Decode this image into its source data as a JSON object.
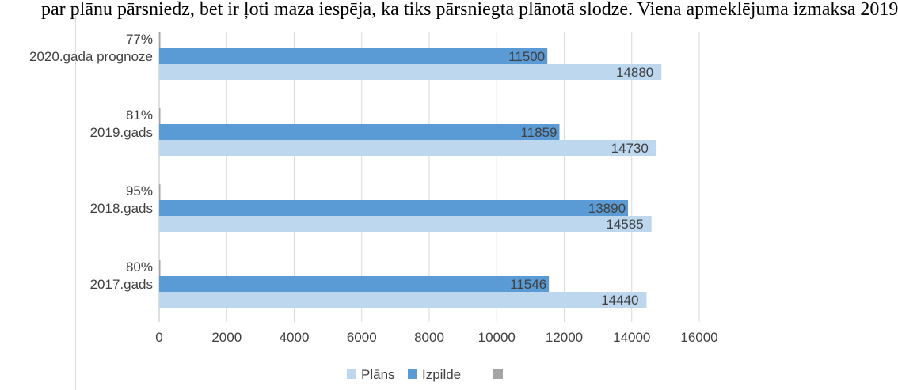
{
  "page": {
    "caption_fragment": "par plānu pārsniedz, bet ir ļoti maza iespēja, ka tiks pārsniegta plānotā slodze. Viena apmeklējuma izmaksa 2019"
  },
  "chart_data": {
    "type": "bar",
    "orientation": "horizontal",
    "categories": [
      "2020.gada prognoze",
      "2019.gads",
      "2018.gads",
      "2017.gads"
    ],
    "series": [
      {
        "name": "Plāns",
        "color": "#bdd7ee",
        "values": [
          14880,
          14730,
          14585,
          14440
        ]
      },
      {
        "name": "Izpilde",
        "color": "#5b9bd5",
        "values": [
          11500,
          11859,
          13890,
          11546
        ]
      },
      {
        "name": "",
        "color": "#a5a5a5",
        "values": [
          "77%",
          "81%",
          "95%",
          "80%"
        ]
      }
    ],
    "xticks": [
      "0",
      "2000",
      "4000",
      "6000",
      "8000",
      "10000",
      "12000",
      "14000",
      "16000"
    ],
    "xlim": [
      0,
      16000
    ],
    "grid": true,
    "legend_position": "bottom",
    "title": "",
    "xlabel": "",
    "ylabel": ""
  }
}
